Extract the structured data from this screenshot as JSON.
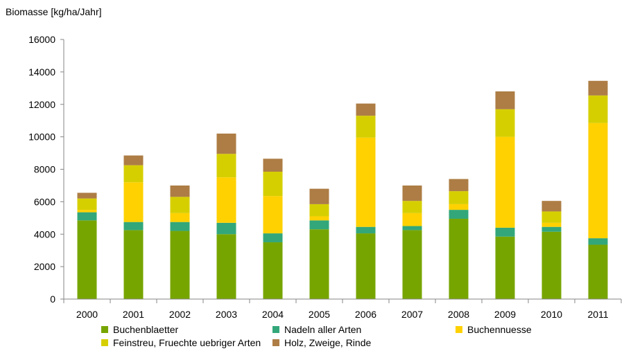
{
  "chart_data": {
    "type": "bar",
    "stacked": true,
    "title": "",
    "xlabel": "",
    "ylabel": "Biomasse [kg/ha/Jahr]",
    "ylim": [
      0,
      16000
    ],
    "yticks": [
      0,
      2000,
      4000,
      6000,
      8000,
      10000,
      12000,
      14000,
      16000
    ],
    "grid": false,
    "legend_position": "bottom",
    "categories": [
      "2000",
      "2001",
      "2002",
      "2003",
      "2004",
      "2005",
      "2006",
      "2007",
      "2008",
      "2009",
      "2010",
      "2011"
    ],
    "series": [
      {
        "name": "Buchenblaetter",
        "color": "#77a500",
        "values": [
          4850,
          4250,
          4200,
          4000,
          3500,
          4300,
          4050,
          4250,
          4950,
          3850,
          4150,
          3350
        ]
      },
      {
        "name": "Nadeln aller Arten",
        "color": "#33a77a",
        "values": [
          500,
          500,
          550,
          700,
          550,
          550,
          400,
          250,
          550,
          550,
          300,
          400
        ]
      },
      {
        "name": "Buchennuesse",
        "color": "#ffd100",
        "values": [
          150,
          2450,
          550,
          2800,
          2300,
          250,
          5500,
          800,
          350,
          5600,
          250,
          7100
        ]
      },
      {
        "name": "Feinstreu, Fruechte uebriger Arten",
        "color": "#d6cf00",
        "values": [
          700,
          1050,
          1000,
          1450,
          1500,
          750,
          1350,
          750,
          800,
          1700,
          700,
          1700
        ]
      },
      {
        "name": "Holz, Zweige, Rinde",
        "color": "#ad7d45",
        "values": [
          350,
          600,
          700,
          1250,
          800,
          950,
          750,
          950,
          750,
          1100,
          650,
          900
        ]
      }
    ]
  }
}
